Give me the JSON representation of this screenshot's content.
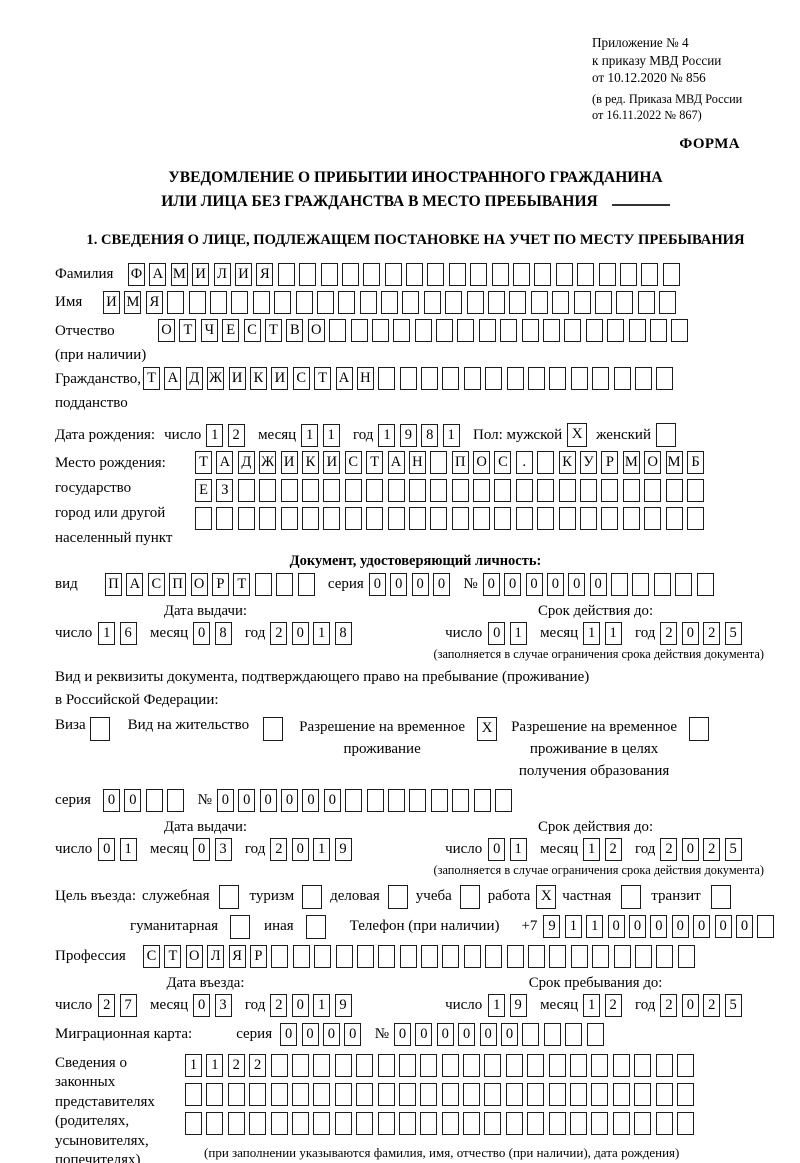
{
  "meta": {
    "appendix_lines": [
      "Приложение № 4",
      "к приказу МВД России",
      "от 10.12.2020 № 856"
    ],
    "revision_lines": [
      "(в ред. Приказа МВД России",
      "от 16.11.2022 № 867)"
    ],
    "forma": "ФОРМА"
  },
  "title": {
    "line1": "УВЕДОМЛЕНИЕ О ПРИБЫТИИ ИНОСТРАННОГО ГРАЖДАНИНА",
    "line2": "ИЛИ ЛИЦА БЕЗ ГРАЖДАНСТВА В МЕСТО ПРЕБЫВАНИЯ"
  },
  "labels": {
    "chislo": "число",
    "mesyac": "месяц",
    "god": "год",
    "seriya": "серия",
    "number": "№",
    "vid": "вид",
    "data_vydachi": "Дата выдачи:",
    "srok_deystviya": "Срок действия до:",
    "validity_note": "(заполняется в случае ограничения срока действия документа)",
    "data_vyezda": "Дата въезда:",
    "srok_prebyvaniya": "Срок пребывания до:"
  },
  "section1": {
    "heading": "1. СВЕДЕНИЯ О ЛИЦЕ, ПОДЛЕЖАЩЕМ ПОСТАНОВКЕ НА УЧЕТ ПО МЕСТУ ПРЕБЫВАНИЯ",
    "surname": {
      "label": "Фамилия",
      "cells": {
        "text": "ФАМИЛИЯ",
        "count": 26
      }
    },
    "given_name": {
      "label": "Имя",
      "cells": {
        "text": "ИМЯ",
        "count": 27
      }
    },
    "patronymic": {
      "label": "Отчество",
      "label2": "(при наличии)",
      "cells": {
        "text": "ОТЧЕСТВО",
        "count": 25
      }
    },
    "citizenship": {
      "label": "Гражданство,",
      "label2": "подданство",
      "cells": {
        "text": "ТАДЖИКИСТАН",
        "count": 25
      }
    },
    "birth": {
      "label": "Дата рождения:",
      "day": {
        "text": "12",
        "count": 2
      },
      "month": {
        "text": "11",
        "count": 2
      },
      "year": {
        "text": "1981",
        "count": 4
      },
      "sex_label": "Пол: мужской",
      "male_mark": "X",
      "female_label": "женский",
      "female_mark": ""
    },
    "birthplace": {
      "label_lines": [
        "Место рождения:",
        "государство",
        "город или другой",
        "населенный пункт"
      ],
      "row1": {
        "text": "ТАДЖИКИСТАН ПОС. КУРМОМБ",
        "count": 24
      },
      "row2": {
        "text": "ЕЗ",
        "count": 24
      },
      "row3": {
        "text": "",
        "count": 24
      }
    },
    "identity_doc": {
      "heading": "Документ, удостоверяющий личность:",
      "vid": {
        "text": "ПАСПОРТ",
        "count": 10
      },
      "seriya": {
        "text": "0000",
        "count": 4
      },
      "number": {
        "text": "000000",
        "count": 11
      },
      "issue_day": {
        "text": "16",
        "count": 2
      },
      "issue_month": {
        "text": "08",
        "count": 2
      },
      "issue_year": {
        "text": "2018",
        "count": 4
      },
      "valid_day": {
        "text": "01",
        "count": 2
      },
      "valid_month": {
        "text": "11",
        "count": 2
      },
      "valid_year": {
        "text": "2025",
        "count": 4
      }
    },
    "residence": {
      "line1": "Вид и реквизиты документа, подтверждающего право на пребывание (проживание)",
      "line2": "в Российской Федерации:",
      "visa_label": "Виза",
      "visa_mark": "",
      "vnj_label": "Вид на жительство",
      "vnj_mark": "",
      "rvp_line1": "Разрешение на временное",
      "rvp_line2": "проживание",
      "rvp_mark": "X",
      "rvp_edu_line1": "Разрешение на временное",
      "rvp_edu_line2": "проживание в целях",
      "rvp_edu_line3": "получения образования",
      "rvp_edu_mark": "",
      "seriya": {
        "text": "00",
        "count": 4
      },
      "number": {
        "text": "000000",
        "count": 14
      },
      "issue_day": {
        "text": "01",
        "count": 2
      },
      "issue_month": {
        "text": "03",
        "count": 2
      },
      "issue_year": {
        "text": "2019",
        "count": 4
      },
      "valid_day": {
        "text": "01",
        "count": 2
      },
      "valid_month": {
        "text": "12",
        "count": 2
      },
      "valid_year": {
        "text": "2025",
        "count": 4
      }
    },
    "purpose": {
      "label": "Цель въезда:",
      "opt_sluzhebnaya": "служебная",
      "mark_sluzhebnaya": "",
      "opt_turizm": "туризм",
      "mark_turizm": "",
      "opt_delovaya": "деловая",
      "mark_delovaya": "",
      "opt_ucheba": "учеба",
      "mark_ucheba": "",
      "opt_rabota": "работа",
      "mark_rabota": "X",
      "opt_chastnaya": "частная",
      "mark_chastnaya": "",
      "opt_tranzit": "транзит",
      "mark_tranzit": "",
      "opt_gumanitarnaya": "гуманитарная",
      "mark_gumanitarnaya": "",
      "opt_inaya": "иная",
      "mark_inaya": "",
      "phone_label": "Телефон (при наличии)",
      "phone_prefix": "+7",
      "phone": {
        "text": "9110000000",
        "count": 11
      }
    },
    "profession": {
      "label": "Профессия",
      "cells": {
        "text": "СТОЛЯР",
        "count": 26
      }
    },
    "entry_day": {
      "text": "27",
      "count": 2
    },
    "entry_month": {
      "text": "03",
      "count": 2
    },
    "entry_year": {
      "text": "2019",
      "count": 4
    },
    "stay_day": {
      "text": "19",
      "count": 2
    },
    "stay_month": {
      "text": "12",
      "count": 2
    },
    "stay_year": {
      "text": "2025",
      "count": 4
    },
    "migration_card": {
      "label": "Миграционная карта:",
      "seriya": {
        "text": "0000",
        "count": 4
      },
      "number": {
        "text": "000000",
        "count": 10
      }
    },
    "representatives": {
      "label_lines": [
        "Сведения о",
        "законных",
        "представителях",
        "(родителях,",
        "усыновителях,",
        "попечителях)"
      ],
      "row1": {
        "text": "1122",
        "count": 24
      },
      "row2": {
        "text": "",
        "count": 24
      },
      "row3": {
        "text": "",
        "count": 24
      },
      "note": "(при заполнении указываются фамилия, имя, отчество (при наличии), дата рождения)"
    }
  }
}
